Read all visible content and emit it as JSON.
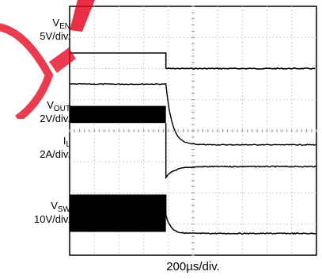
{
  "chart_data": {
    "type": "line",
    "title": "",
    "xlabel": "200µs/div.",
    "grid": "on",
    "xlim": [
      0,
      10
    ],
    "x_unit_per_div": "200µs",
    "channels": [
      {
        "name": "EN",
        "prefix": "V",
        "sub": "EN",
        "scale": "5V/div."
      },
      {
        "name": "OUT",
        "prefix": "V",
        "sub": "OUT",
        "scale": "2V/div."
      },
      {
        "name": "L",
        "prefix": "I",
        "sub": "L",
        "scale": "2A/div."
      },
      {
        "name": "SW",
        "prefix": "V",
        "sub": "SW",
        "scale": "10V/div."
      }
    ],
    "traces": {
      "EN": {
        "high_div": 6.5,
        "low_div": 6.0,
        "step_at_div": 3.9
      },
      "OUT": {
        "initial_div": 5.5,
        "final_div": 3.55,
        "fall_start_div": 3.9,
        "tau_div": 0.25
      },
      "L": {
        "ripple_top_div": 4.8,
        "ripple_bottom_div": 4.25,
        "end_at_div": 3.9,
        "drop_to_div": 2.5,
        "final_div": 2.85,
        "recover_tau_div": 0.35
      },
      "SW": {
        "burst_top_div": 1.95,
        "burst_bottom_div": 0.75,
        "end_at_div": 3.9,
        "final_div": 0.7,
        "decay_tau_div": 0.2
      }
    }
  }
}
